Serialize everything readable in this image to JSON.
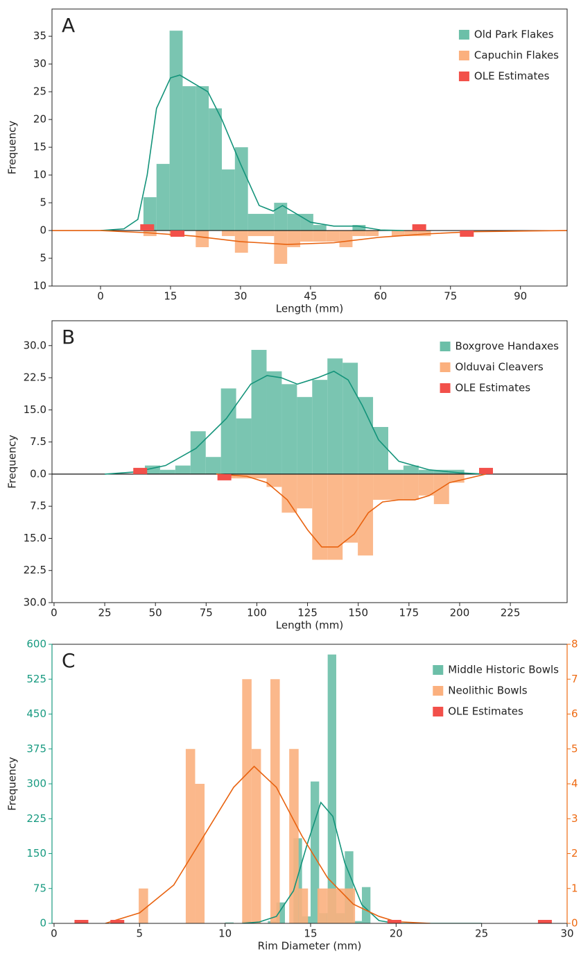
{
  "chart_data": [
    {
      "type": "histogram",
      "panel_label": "A",
      "xlabel": "Length (mm)",
      "ylabel": "Frequency",
      "xlim": [
        -10.4,
        100
      ],
      "ylim": [
        -10,
        39.9
      ],
      "xticks": [
        0,
        15,
        30,
        45,
        60,
        75,
        90
      ],
      "yticks": [
        {
          "value": -10,
          "label": "10"
        },
        {
          "value": -5,
          "label": "5"
        },
        0,
        5,
        10,
        15,
        20,
        25,
        30,
        35
      ],
      "legend": "upper right",
      "series": [
        {
          "name": "Old Park Flakes",
          "color": "#6cbfa8",
          "bins": [
            9.2,
            12.0,
            14.8,
            17.6,
            20.4,
            23.2,
            26.0,
            28.8,
            31.6,
            34.4,
            37.2,
            40.0,
            42.8,
            45.6,
            48.4,
            51.2,
            54.0,
            56.8
          ],
          "values": [
            6,
            12,
            36,
            26,
            26,
            22,
            11,
            15,
            3,
            3,
            5,
            3,
            3,
            1,
            0,
            0,
            1
          ],
          "kde_color": "#13937a",
          "kde": {
            "x": [
              0,
              5,
              8,
              10,
              12,
              15,
              17,
              20,
              23,
              26,
              30,
              34,
              37,
              39,
              42,
              45,
              50,
              55,
              60,
              65
            ],
            "y": [
              0,
              0.3,
              2,
              10,
              22,
              27.5,
              28,
              26.5,
              25,
              20,
              12,
              4.5,
              3.5,
              4.5,
              3,
              1.5,
              0.8,
              0.8,
              0.1,
              0
            ]
          }
        },
        {
          "name": "Capuchin Flakes",
          "color": "#fbb07e",
          "direction": "down",
          "bins": [
            9.2,
            12.0,
            14.8,
            17.6,
            20.4,
            23.2,
            26.0,
            28.8,
            31.6,
            34.4,
            37.2,
            40.0,
            42.8,
            45.6,
            48.4,
            51.2,
            54.0,
            56.8,
            59.6,
            62.4,
            65.2,
            68.0,
            70.8
          ],
          "values": [
            1,
            0,
            1,
            0,
            3,
            0,
            1,
            4,
            1,
            1,
            6,
            3,
            2,
            2,
            2,
            3,
            1,
            1,
            0,
            1,
            1,
            1
          ],
          "kde_color": "#e8620f",
          "kde": {
            "x": [
              -10.4,
              0,
              10,
              20,
              30,
              40,
              50,
              60,
              70,
              80,
              100
            ],
            "y": [
              0,
              0,
              0.4,
              1,
              2,
              2.5,
              2.2,
              1.2,
              0.6,
              0.2,
              0
            ]
          }
        }
      ],
      "markers": {
        "name": "OLE Estimates",
        "color": "#f2504a",
        "x": [
          10,
          16.5,
          68.3,
          78.5
        ]
      }
    },
    {
      "type": "histogram",
      "panel_label": "B",
      "xlabel": "Length (mm)",
      "ylabel": "Frequency",
      "xlim": [
        -1,
        253
      ],
      "ylim": [
        -30,
        35.8
      ],
      "xticks": [
        0,
        25,
        50,
        75,
        100,
        125,
        150,
        175,
        200,
        225
      ],
      "yticks": [
        {
          "value": -30,
          "label": "30.0"
        },
        {
          "value": -22.5,
          "label": "22.5"
        },
        {
          "value": -15,
          "label": "15.0"
        },
        {
          "value": -7.5,
          "label": "7.5"
        },
        {
          "value": 0,
          "label": "0.0"
        },
        7.5,
        {
          "value": 15,
          "label": "15.0"
        },
        22.5,
        {
          "value": 30,
          "label": "30.0"
        }
      ],
      "legend": "upper right",
      "series": [
        {
          "name": "Boxgrove Handaxes",
          "color": "#6cbfa8",
          "bins": [
            44.8,
            52.3,
            59.8,
            67.3,
            74.8,
            82.3,
            89.8,
            97.3,
            104.8,
            112.3,
            119.8,
            127.3,
            134.8,
            142.3,
            149.8,
            157.3,
            164.8,
            172.3,
            179.8,
            187.3,
            194.8,
            202.3
          ],
          "values": [
            2,
            1,
            2,
            10,
            4,
            20,
            13,
            29,
            24,
            21,
            18,
            22,
            27,
            26,
            18,
            11,
            1,
            2,
            1,
            1,
            1
          ],
          "kde_color": "#13937a",
          "kde": {
            "x": [
              25,
              40,
              55,
              70,
              85,
              97,
              105,
              112,
              120,
              130,
              138,
              145,
              152,
              160,
              170,
              185,
              200,
              213
            ],
            "y": [
              0,
              0.5,
              2,
              6,
              13,
              21,
              23,
              22.5,
              21,
              22.5,
              24,
              22,
              16,
              8,
              3,
              1,
              0.3,
              0
            ]
          }
        },
        {
          "name": "Olduvai Cleavers",
          "color": "#fbb07e",
          "direction": "down",
          "bins": [
            82.3,
            89.8,
            97.3,
            104.8,
            112.3,
            119.8,
            127.3,
            134.8,
            142.3,
            149.8,
            157.3,
            164.8,
            172.3,
            179.8,
            187.3,
            194.8,
            202.3
          ],
          "values": [
            1,
            1,
            1,
            3,
            9,
            8,
            20,
            20,
            16,
            19,
            6,
            6,
            6,
            5,
            7,
            2
          ],
          "kde_color": "#e8620f",
          "kde": {
            "x": [
              80,
              95,
              105,
              115,
              125,
              132,
              140,
              148,
              155,
              162,
              170,
              178,
              185,
              195,
              213
            ],
            "y": [
              0,
              0.5,
              2,
              6,
              13,
              17,
              17,
              14,
              9,
              6.5,
              6,
              6,
              5,
              2,
              0
            ]
          }
        }
      ],
      "markers": {
        "name": "OLE Estimates",
        "color": "#f2504a",
        "x": [
          42.5,
          84,
          213
        ]
      }
    },
    {
      "type": "histogram",
      "panel_label": "C",
      "xlabel": "Rim Diameter (mm)",
      "ylabel": "Frequency",
      "xlim": [
        -0.12,
        30
      ],
      "ylim": [
        0,
        600
      ],
      "y2lim": [
        0,
        8
      ],
      "xticks": [
        0,
        5,
        10,
        15,
        20,
        25,
        30
      ],
      "yticks": [
        0,
        75,
        150,
        225,
        300,
        375,
        450,
        525,
        600
      ],
      "y2ticks": [
        0,
        1,
        2,
        3,
        4,
        5,
        6,
        7,
        8
      ],
      "ytick_color": "#179a80",
      "y2tick_color": "#ee6a12",
      "legend": "upper right",
      "series": [
        {
          "name": "Middle Historic Bowls",
          "color": "#6cbfa8",
          "bins": [
            10.0,
            10.5,
            11.0,
            11.5,
            12.0,
            12.5,
            13.0,
            13.5,
            14.0,
            14.5,
            15.0,
            15.5,
            16.0,
            16.5,
            17.0,
            17.5,
            18.0,
            18.5
          ],
          "values": [
            2,
            0,
            5,
            0,
            0,
            5,
            45,
            0,
            183,
            15,
            305,
            22,
            578,
            22,
            155,
            5,
            78
          ],
          "kde_color": "#13937a",
          "kde": {
            "x": [
              11,
              12,
              13,
              14,
              14.8,
              15.6,
              16.3,
              17,
              18,
              19,
              20,
              22,
              25
            ],
            "y": [
              0,
              3,
              15,
              70,
              170,
              260,
              230,
              130,
              40,
              6,
              0,
              0,
              0
            ]
          }
        },
        {
          "name": "Neolithic Bowls",
          "color": "#fbb07e",
          "axis": "y2",
          "bins": [
            4.95,
            5.5,
            6.05,
            6.6,
            7.15,
            7.7,
            8.25,
            8.8,
            9.35,
            9.9,
            10.45,
            11.0,
            11.55,
            12.1,
            12.65,
            13.2,
            13.75,
            14.3,
            14.85,
            15.4,
            15.95,
            16.5,
            17.05,
            17.6
          ],
          "values": [
            1,
            0,
            0,
            0,
            0,
            5,
            4,
            0,
            0,
            0,
            0,
            7,
            5,
            0,
            7,
            0,
            5,
            1,
            0,
            1,
            1,
            1,
            1
          ],
          "kde_color": "#e8620f",
          "kde": {
            "x": [
              3,
              5,
              7,
              9,
              10.5,
              11.7,
              13,
              14.5,
              16,
              17.5,
              19,
              20,
              22
            ],
            "y": [
              0,
              0.3,
              1.1,
              2.7,
              3.9,
              4.5,
              3.9,
              2.5,
              1.3,
              0.55,
              0.2,
              0.05,
              0
            ]
          }
        }
      ],
      "markers": {
        "name": "OLE Estimates",
        "color": "#f2504a",
        "x": [
          1.6,
          3.7,
          19.9,
          28.7
        ]
      }
    }
  ]
}
